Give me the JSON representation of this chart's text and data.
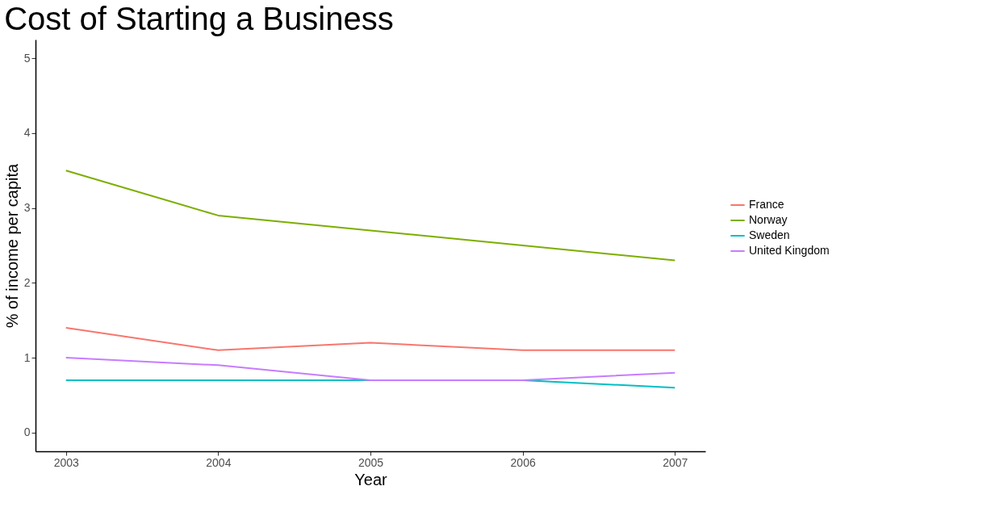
{
  "chart_data": {
    "type": "line",
    "title": "Cost of Starting a Business",
    "xlabel": "Year",
    "ylabel": "% of income per capita",
    "x": [
      2003,
      2004,
      2005,
      2006,
      2007
    ],
    "series": [
      {
        "name": "France",
        "color": "#f8766d",
        "values": [
          1.4,
          1.1,
          1.2,
          1.1,
          1.1
        ]
      },
      {
        "name": "Norway",
        "color": "#7cae00",
        "values": [
          3.5,
          2.9,
          2.7,
          2.5,
          2.3
        ]
      },
      {
        "name": "Sweden",
        "color": "#00bfc4",
        "values": [
          0.7,
          0.7,
          0.7,
          0.7,
          0.6
        ]
      },
      {
        "name": "United Kingdom",
        "color": "#c77cff",
        "values": [
          1.0,
          0.9,
          0.7,
          0.7,
          0.8
        ]
      }
    ],
    "xlim": [
      2002.8,
      2007.2
    ],
    "xticks": [
      2003,
      2004,
      2005,
      2006,
      2007
    ],
    "ylim": [
      -0.25,
      5.25
    ],
    "yticks": [
      0,
      1,
      2,
      3,
      4,
      5
    ],
    "grid": false,
    "legend": "right",
    "marker": "none",
    "line_style": "solid"
  }
}
